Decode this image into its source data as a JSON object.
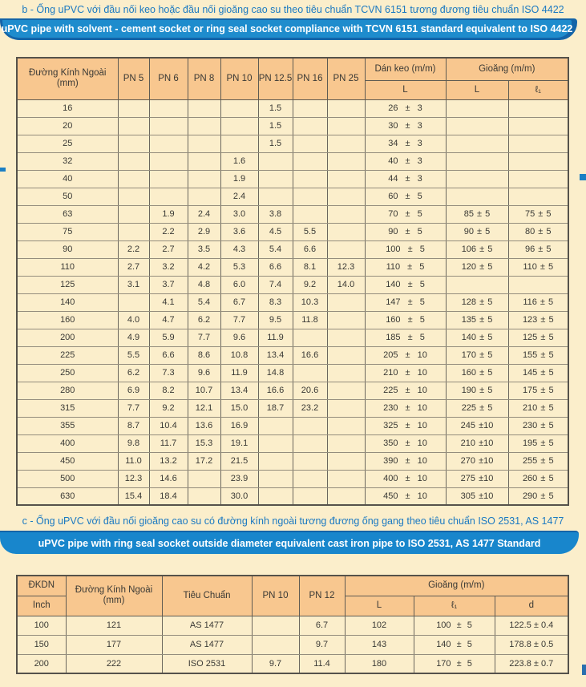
{
  "page": {
    "background_color": "#FBEECB",
    "heading_text_color": "#1B79C2",
    "banner_dark_blue": "#1464A8",
    "banner_light_blue": "#1E8CCD",
    "table_header_fill": "#F8C78F"
  },
  "section_b": {
    "heading": "b - Ống uPVC với đầu nối keo hoặc đầu nối gioăng cao su theo tiêu chuẩn TCVN 6151 tương đương tiêu chuẩn ISO 4422",
    "banner": "uPVC pipe with solvent - cement socket or ring seal socket compliance with TCVN 6151 standard equivalent to ISO 4422"
  },
  "section_c": {
    "heading": "c - Ống uPVC với đầu nối gioăng cao su có đường kính ngoài tương đương ống gang theo tiêu chuẩn ISO 2531, AS 1477",
    "banner": "uPVC pipe with ring seal socket outside diameter equivalent cast iron pipe to ISO 2531, AS 1477 Standard"
  },
  "table1": {
    "headers": {
      "od": "Đường Kính Ngoài",
      "od_unit": "(mm)",
      "pn": [
        "PN 5",
        "PN 6",
        "PN 8",
        "PN 10",
        "PN 12.5",
        "PN 16",
        "PN 25"
      ],
      "dan_keo": "Dán keo (m/m)",
      "dan_keo_sub": "L",
      "gioang": "Gioăng (m/m)",
      "gioang_sub_l": "L",
      "gioang_sub_l1": "ℓ₁"
    },
    "rows": [
      [
        "16",
        "",
        "",
        "",
        "",
        "1.5",
        "",
        "",
        "26 ± 3",
        "",
        ""
      ],
      [
        "20",
        "",
        "",
        "",
        "",
        "1.5",
        "",
        "",
        "30 ± 3",
        "",
        ""
      ],
      [
        "25",
        "",
        "",
        "",
        "",
        "1.5",
        "",
        "",
        "34 ± 3",
        "",
        ""
      ],
      [
        "32",
        "",
        "",
        "",
        "1.6",
        "",
        "",
        "",
        "40 ± 3",
        "",
        ""
      ],
      [
        "40",
        "",
        "",
        "",
        "1.9",
        "",
        "",
        "",
        "44 ± 3",
        "",
        ""
      ],
      [
        "50",
        "",
        "",
        "",
        "2.4",
        "",
        "",
        "",
        "60 ± 5",
        "",
        ""
      ],
      [
        "63",
        "",
        "1.9",
        "2.4",
        "3.0",
        "3.8",
        "",
        "",
        "70 ± 5",
        "85 ± 5",
        "75 ± 5"
      ],
      [
        "75",
        "",
        "2.2",
        "2.9",
        "3.6",
        "4.5",
        "5.5",
        "",
        "90 ± 5",
        "90 ± 5",
        "80 ± 5"
      ],
      [
        "90",
        "2.2",
        "2.7",
        "3.5",
        "4.3",
        "5.4",
        "6.6",
        "",
        "100 ± 5",
        "106 ± 5",
        "96 ± 5"
      ],
      [
        "110",
        "2.7",
        "3.2",
        "4.2",
        "5.3",
        "6.6",
        "8.1",
        "12.3",
        "110 ± 5",
        "120 ± 5",
        "110 ± 5"
      ],
      [
        "125",
        "3.1",
        "3.7",
        "4.8",
        "6.0",
        "7.4",
        "9.2",
        "14.0",
        "140 ± 5",
        "",
        ""
      ],
      [
        "140",
        "",
        "4.1",
        "5.4",
        "6.7",
        "8.3",
        "10.3",
        "",
        "147 ± 5",
        "128 ± 5",
        "116 ± 5"
      ],
      [
        "160",
        "4.0",
        "4.7",
        "6.2",
        "7.7",
        "9.5",
        "11.8",
        "",
        "160 ± 5",
        "135 ± 5",
        "123 ± 5"
      ],
      [
        "200",
        "4.9",
        "5.9",
        "7.7",
        "9.6",
        "11.9",
        "",
        "",
        "185 ± 5",
        "140 ± 5",
        "125 ± 5"
      ],
      [
        "225",
        "5.5",
        "6.6",
        "8.6",
        "10.8",
        "13.4",
        "16.6",
        "",
        "205 ± 10",
        "170 ± 5",
        "155 ± 5"
      ],
      [
        "250",
        "6.2",
        "7.3",
        "9.6",
        "11.9",
        "14.8",
        "",
        "",
        "210 ± 10",
        "160 ± 5",
        "145 ± 5"
      ],
      [
        "280",
        "6.9",
        "8.2",
        "10.7",
        "13.4",
        "16.6",
        "20.6",
        "",
        "225 ± 10",
        "190 ± 5",
        "175 ± 5"
      ],
      [
        "315",
        "7.7",
        "9.2",
        "12.1",
        "15.0",
        "18.7",
        "23.2",
        "",
        "230 ± 10",
        "225 ± 5",
        "210 ± 5"
      ],
      [
        "355",
        "8.7",
        "10.4",
        "13.6",
        "16.9",
        "",
        "",
        "",
        "325 ± 10",
        "245 ±10",
        "230 ± 5"
      ],
      [
        "400",
        "9.8",
        "11.7",
        "15.3",
        "19.1",
        "",
        "",
        "",
        "350 ± 10",
        "210 ±10",
        "195 ± 5"
      ],
      [
        "450",
        "11.0",
        "13.2",
        "17.2",
        "21.5",
        "",
        "",
        "",
        "390 ± 10",
        "270 ±10",
        "255 ± 5"
      ],
      [
        "500",
        "12.3",
        "14.6",
        "",
        "23.9",
        "",
        "",
        "",
        "400 ± 10",
        "275 ±10",
        "260 ± 5"
      ],
      [
        "630",
        "15.4",
        "18.4",
        "",
        "30.0",
        "",
        "",
        "",
        "450 ± 10",
        "305 ±10",
        "290 ± 5"
      ]
    ]
  },
  "table2": {
    "headers": {
      "dkdn": "ĐKDN",
      "dkdn_unit": "Inch",
      "od": "Đường Kính Ngoài",
      "od_unit": "(mm)",
      "standard": "Tiêu Chuẩn",
      "pn10": "PN 10",
      "pn12": "PN 12",
      "gioang": "Gioăng (m/m)",
      "gioang_sub_l": "L",
      "gioang_sub_l1": "ℓ₁",
      "gioang_sub_d": "d"
    },
    "rows": [
      [
        "100",
        "121",
        "AS 1477",
        "",
        "6.7",
        "102",
        "100 ± 5",
        "122.5 ± 0.4"
      ],
      [
        "150",
        "177",
        "AS 1477",
        "",
        "9.7",
        "143",
        "140 ± 5",
        "178.8 ± 0.5"
      ],
      [
        "200",
        "222",
        "ISO 2531",
        "9.7",
        "11.4",
        "180",
        "170 ± 5",
        "223.8 ± 0.7"
      ]
    ]
  }
}
